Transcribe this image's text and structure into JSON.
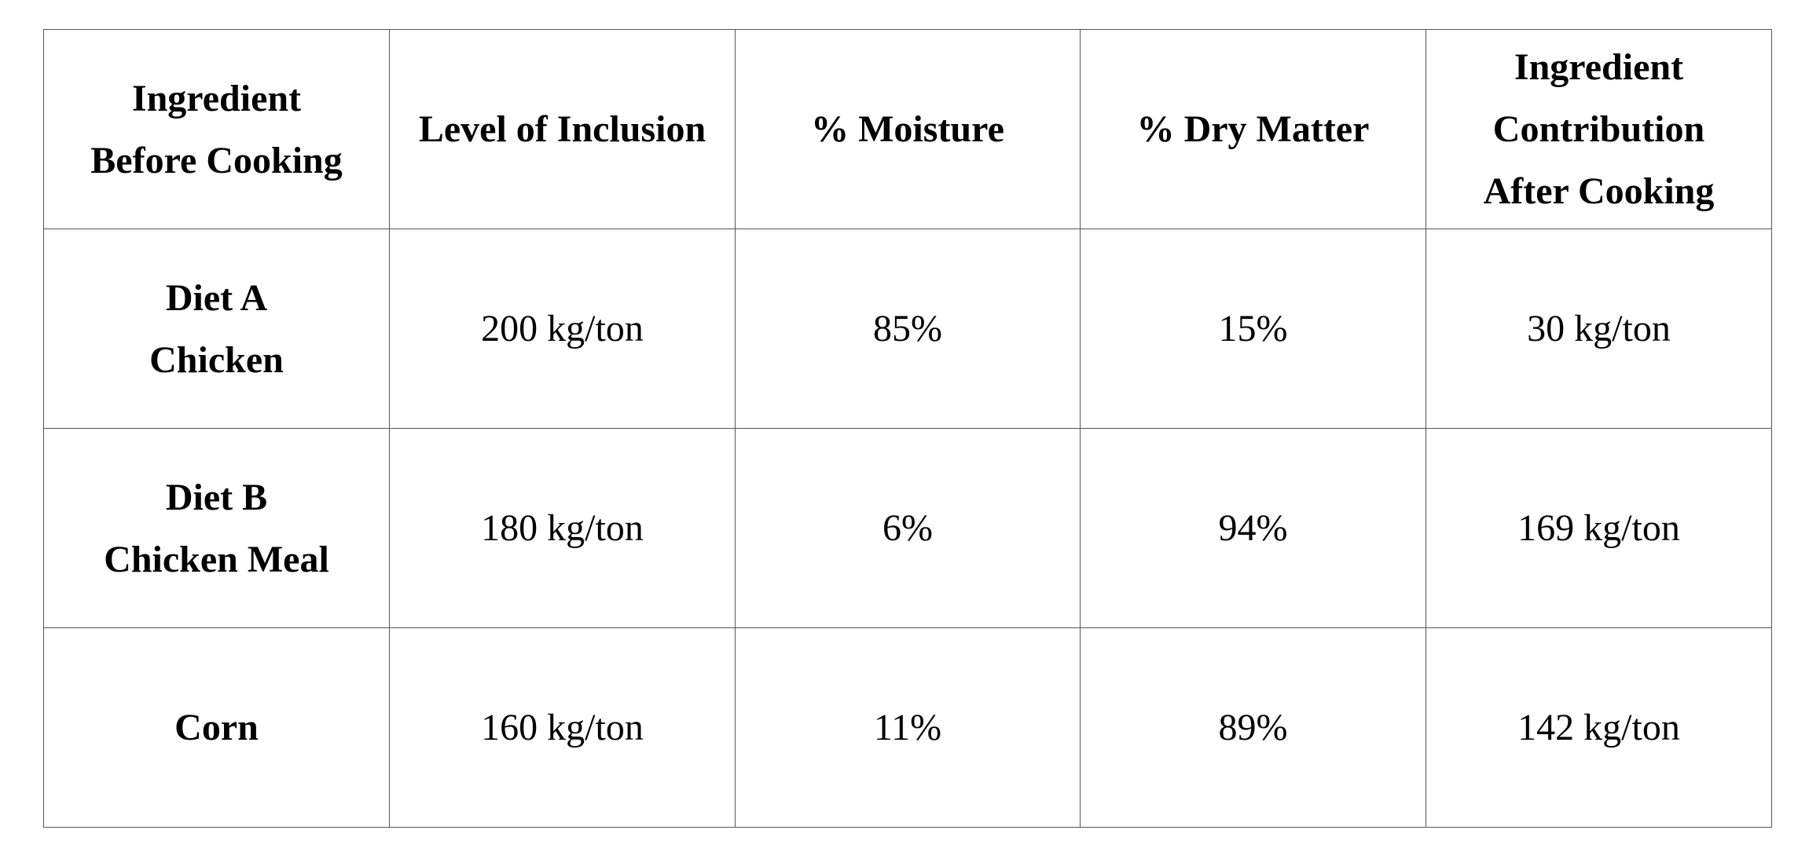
{
  "table": {
    "header": [
      [
        "Ingredient",
        "Before Cooking"
      ],
      [
        "Level of Inclusion"
      ],
      [
        "% Moisture"
      ],
      [
        "% Dry Matter"
      ],
      [
        "Ingredient",
        "Contribution",
        "After Cooking"
      ]
    ],
    "rows": [
      [
        [
          "Diet A",
          "Chicken"
        ],
        [
          "200 kg/ton"
        ],
        [
          "85%"
        ],
        [
          "15%"
        ],
        [
          "30 kg/ton"
        ]
      ],
      [
        [
          "Diet B",
          "Chicken Meal"
        ],
        [
          "180 kg/ton"
        ],
        [
          "6%"
        ],
        [
          "94%"
        ],
        [
          "169 kg/ton"
        ]
      ],
      [
        [
          "Corn"
        ],
        [
          "160 kg/ton"
        ],
        [
          "11%"
        ],
        [
          "89%"
        ],
        [
          "142 kg/ton"
        ]
      ]
    ]
  }
}
